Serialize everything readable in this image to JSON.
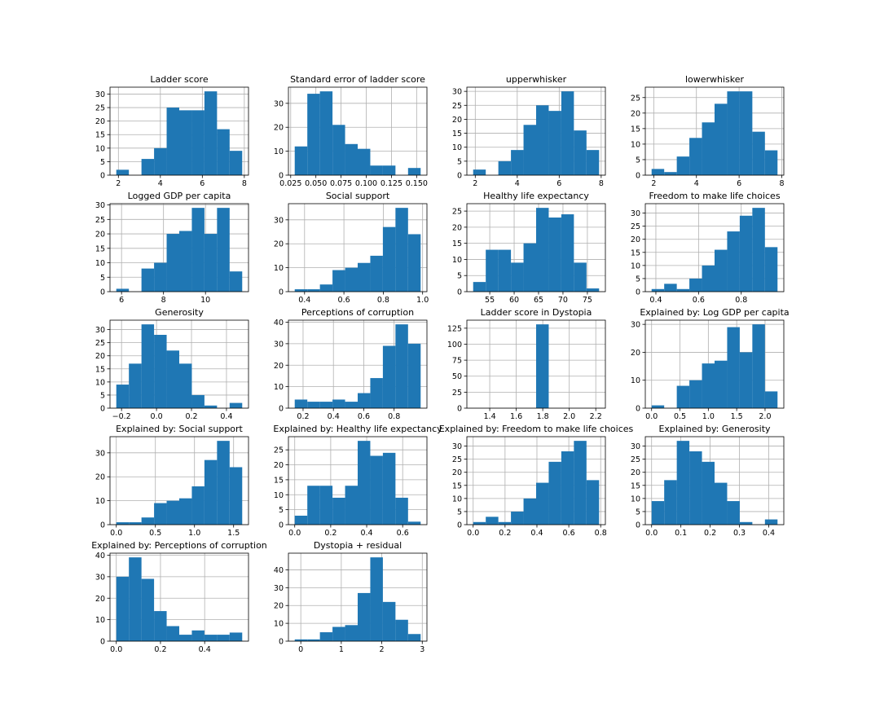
{
  "chart_data": [
    {
      "type": "histogram",
      "title": "Ladder score",
      "color": "#1f77b4",
      "grid": true,
      "bins": [
        1.9,
        2.5,
        3.1,
        3.7,
        4.3,
        4.9,
        5.5,
        6.1,
        6.7,
        7.3,
        7.9
      ],
      "values": [
        2,
        0,
        6,
        10,
        25,
        24,
        24,
        31,
        17,
        9
      ],
      "xlim": [
        1.6,
        8.2
      ],
      "xticks": [
        2,
        4,
        6,
        8
      ],
      "ylim": [
        0,
        32.55
      ],
      "yticks": [
        0,
        5,
        10,
        15,
        20,
        25,
        30
      ]
    },
    {
      "type": "histogram",
      "title": "Standard error of ladder score",
      "color": "#1f77b4",
      "grid": true,
      "bins": [
        0.029,
        0.0415,
        0.054,
        0.0665,
        0.079,
        0.0915,
        0.104,
        0.1165,
        0.129,
        0.1415,
        0.154
      ],
      "values": [
        12,
        34,
        35,
        21,
        13,
        11,
        4,
        4,
        0,
        3
      ],
      "xlim": [
        0.02275,
        0.16025
      ],
      "xticks": [
        0.025,
        {
          "value": 0.05,
          "label": "0.050"
        },
        0.075,
        {
          "value": 0.1,
          "label": "0.100"
        },
        0.125,
        {
          "value": 0.15,
          "label": "0.150"
        }
      ],
      "ylim": [
        0,
        36.75
      ],
      "yticks": [
        0,
        10,
        20,
        30
      ]
    },
    {
      "type": "histogram",
      "title": "upperwhisker",
      "color": "#1f77b4",
      "grid": true,
      "bins": [
        1.9,
        2.5,
        3.1,
        3.7,
        4.3,
        4.9,
        5.5,
        6.1,
        6.7,
        7.3,
        7.9
      ],
      "values": [
        2,
        0,
        5,
        9,
        18,
        25,
        23,
        30,
        16,
        9
      ],
      "xlim": [
        1.6,
        8.2
      ],
      "xticks": [
        2,
        4,
        6,
        8
      ],
      "ylim": [
        0,
        31.5
      ],
      "yticks": [
        0,
        5,
        10,
        15,
        20,
        25,
        30
      ]
    },
    {
      "type": "histogram",
      "title": "lowerwhisker",
      "color": "#1f77b4",
      "grid": true,
      "bins": [
        1.9,
        2.49,
        3.08,
        3.67,
        4.26,
        4.85,
        5.44,
        6.03,
        6.62,
        7.21,
        7.8
      ],
      "values": [
        2,
        1,
        6,
        12,
        17,
        23,
        27,
        27,
        14,
        8
      ],
      "xlim": [
        1.605,
        8.095
      ],
      "xticks": [
        2,
        4,
        6,
        8
      ],
      "ylim": [
        0,
        28.35
      ],
      "yticks": [
        0,
        5,
        10,
        15,
        20,
        25
      ]
    },
    {
      "type": "histogram",
      "title": "Logged GDP per capita",
      "color": "#1f77b4",
      "grid": true,
      "bins": [
        5.75,
        6.35,
        6.95,
        7.55,
        8.15,
        8.75,
        9.35,
        9.95,
        10.55,
        11.15,
        11.75
      ],
      "values": [
        1,
        0,
        8,
        10,
        20,
        21,
        29,
        20,
        29,
        7
      ],
      "xlim": [
        5.45,
        12.05
      ],
      "xticks": [
        6,
        8,
        10
      ],
      "ylim": [
        0,
        30.45
      ],
      "yticks": [
        0,
        5,
        10,
        15,
        20,
        25,
        30
      ]
    },
    {
      "type": "histogram",
      "title": "Social support",
      "color": "#1f77b4",
      "grid": true,
      "bins": [
        0.35,
        0.414,
        0.478,
        0.542,
        0.606,
        0.67,
        0.734,
        0.798,
        0.862,
        0.926,
        0.99
      ],
      "values": [
        1,
        1,
        3,
        9,
        10,
        12,
        15,
        27,
        35,
        24
      ],
      "xlim": [
        0.318,
        1.022
      ],
      "xticks": [
        0.4,
        0.6,
        0.8,
        {
          "value": 1,
          "label": "1.0"
        }
      ],
      "ylim": [
        0,
        36.75
      ],
      "yticks": [
        0,
        10,
        20,
        30
      ]
    },
    {
      "type": "histogram",
      "title": "Healthy life expectancy",
      "color": "#1f77b4",
      "grid": true,
      "bins": [
        51.6,
        54.18,
        56.76,
        59.34,
        61.92,
        64.5,
        67.08,
        69.66,
        72.24,
        74.82,
        77.4
      ],
      "values": [
        3,
        13,
        13,
        9,
        15,
        26,
        23,
        24,
        9,
        1
      ],
      "xlim": [
        50.31,
        78.69
      ],
      "xticks": [
        55,
        60,
        65,
        70,
        75
      ],
      "ylim": [
        0,
        27.3
      ],
      "yticks": [
        0,
        5,
        10,
        15,
        20,
        25
      ]
    },
    {
      "type": "histogram",
      "title": "Freedom to make life choices",
      "color": "#1f77b4",
      "grid": true,
      "bins": [
        0.38,
        0.439,
        0.498,
        0.557,
        0.616,
        0.675,
        0.734,
        0.793,
        0.852,
        0.911,
        0.97
      ],
      "values": [
        1,
        3,
        1,
        5,
        10,
        16,
        23,
        29,
        32,
        17
      ],
      "xlim": [
        0.3505,
        0.9995
      ],
      "xticks": [
        0.4,
        0.6,
        0.8
      ],
      "ylim": [
        0,
        33.6
      ],
      "yticks": [
        0,
        5,
        10,
        15,
        20,
        25,
        30
      ]
    },
    {
      "type": "histogram",
      "title": "Generosity",
      "color": "#1f77b4",
      "grid": true,
      "bins": [
        -0.23,
        -0.158,
        -0.086,
        -0.014,
        0.058,
        0.13,
        0.202,
        0.274,
        0.346,
        0.418,
        0.49
      ],
      "values": [
        9,
        17,
        32,
        28,
        22,
        17,
        5,
        1,
        0,
        2
      ],
      "xlim": [
        -0.266,
        0.526
      ],
      "xticks": [
        {
          "value": -0.2,
          "label": "−0.2"
        },
        {
          "value": 0,
          "label": "0.0"
        },
        0.2,
        0.4
      ],
      "ylim": [
        0,
        33.6
      ],
      "yticks": [
        0,
        5,
        10,
        15,
        20,
        25,
        30
      ]
    },
    {
      "type": "histogram",
      "title": "Perceptions of corruption",
      "color": "#1f77b4",
      "grid": true,
      "bins": [
        0.145,
        0.228,
        0.311,
        0.394,
        0.477,
        0.56,
        0.643,
        0.726,
        0.809,
        0.892,
        0.975
      ],
      "values": [
        4,
        3,
        3,
        4,
        3,
        7,
        14,
        29,
        39,
        30
      ],
      "xlim": [
        0.1035,
        1.0165
      ],
      "xticks": [
        0.2,
        0.4,
        0.6,
        0.8
      ],
      "ylim": [
        0,
        40.95
      ],
      "yticks": [
        0,
        10,
        20,
        30,
        40
      ]
    },
    {
      "type": "histogram",
      "title": "Ladder score in Dystopia",
      "color": "#1f77b4",
      "grid": true,
      "bins": [
        1.275,
        1.37,
        1.465,
        1.56,
        1.655,
        1.75,
        1.845,
        1.94,
        2.035,
        2.13,
        2.225
      ],
      "values": [
        0,
        0,
        0,
        0,
        0,
        131,
        0,
        0,
        0,
        0
      ],
      "xlim": [
        1.2275,
        2.2725
      ],
      "xticks": [
        1.4,
        1.6,
        1.8,
        {
          "value": 2,
          "label": "2.0"
        },
        2.2
      ],
      "ylim": [
        0,
        137.55
      ],
      "yticks": [
        0,
        25,
        50,
        75,
        100,
        125
      ]
    },
    {
      "type": "histogram",
      "title": "Explained by: Log GDP per capita",
      "color": "#1f77b4",
      "grid": true,
      "bins": [
        0,
        0.222,
        0.444,
        0.666,
        0.888,
        1.11,
        1.332,
        1.554,
        1.776,
        1.998,
        2.22
      ],
      "values": [
        1,
        0,
        8,
        10,
        16,
        17,
        29,
        20,
        30,
        6
      ],
      "xlim": [
        -0.111,
        2.331
      ],
      "xticks": [
        {
          "value": 0,
          "label": "0.0"
        },
        0.5,
        {
          "value": 1,
          "label": "1.0"
        },
        1.5,
        {
          "value": 2,
          "label": "2.0"
        }
      ],
      "ylim": [
        0,
        31.5
      ],
      "yticks": [
        0,
        10,
        20,
        30
      ]
    },
    {
      "type": "histogram",
      "title": "Explained by: Social support",
      "color": "#1f77b4",
      "grid": true,
      "bins": [
        0,
        0.161,
        0.322,
        0.483,
        0.644,
        0.805,
        0.966,
        1.127,
        1.288,
        1.449,
        1.61
      ],
      "values": [
        1,
        1,
        3,
        9,
        10,
        11,
        16,
        27,
        35,
        24
      ],
      "xlim": [
        -0.0805,
        1.6905
      ],
      "xticks": [
        {
          "value": 0,
          "label": "0.0"
        },
        0.5,
        {
          "value": 1,
          "label": "1.0"
        },
        1.5
      ],
      "ylim": [
        0,
        36.75
      ],
      "yticks": [
        0,
        10,
        20,
        30
      ]
    },
    {
      "type": "histogram",
      "title": "Explained by: Healthy life expectancy",
      "color": "#1f77b4",
      "grid": true,
      "bins": [
        0,
        0.07,
        0.14,
        0.21,
        0.28,
        0.35,
        0.42,
        0.49,
        0.56,
        0.63,
        0.7
      ],
      "values": [
        3,
        13,
        13,
        9,
        13,
        28,
        23,
        24,
        9,
        1
      ],
      "xlim": [
        -0.035,
        0.735
      ],
      "xticks": [
        {
          "value": 0,
          "label": "0.0"
        },
        0.2,
        0.4,
        0.6
      ],
      "ylim": [
        0,
        29.4
      ],
      "yticks": [
        0,
        5,
        10,
        15,
        20,
        25
      ]
    },
    {
      "type": "histogram",
      "title": "Explained by: Freedom to make life choices",
      "color": "#1f77b4",
      "grid": true,
      "bins": [
        0,
        0.079,
        0.158,
        0.237,
        0.316,
        0.395,
        0.474,
        0.553,
        0.632,
        0.711,
        0.79
      ],
      "values": [
        1,
        3,
        1,
        5,
        10,
        16,
        24,
        28,
        32,
        17
      ],
      "xlim": [
        -0.0395,
        0.8295
      ],
      "xticks": [
        {
          "value": 0,
          "label": "0.0"
        },
        0.2,
        0.4,
        0.6,
        0.8
      ],
      "ylim": [
        0,
        33.6
      ],
      "yticks": [
        0,
        5,
        10,
        15,
        20,
        25,
        30
      ]
    },
    {
      "type": "histogram",
      "title": "Explained by: Generosity",
      "color": "#1f77b4",
      "grid": true,
      "bins": [
        0,
        0.043,
        0.086,
        0.129,
        0.172,
        0.215,
        0.258,
        0.301,
        0.344,
        0.387,
        0.43
      ],
      "values": [
        9,
        17,
        32,
        28,
        24,
        16,
        9,
        1,
        0,
        2
      ],
      "xlim": [
        -0.0215,
        0.4515
      ],
      "xticks": [
        {
          "value": 0,
          "label": "0.0"
        },
        0.1,
        0.2,
        0.3,
        0.4
      ],
      "ylim": [
        0,
        33.6
      ],
      "yticks": [
        0,
        5,
        10,
        15,
        20,
        25,
        30
      ]
    },
    {
      "type": "histogram",
      "title": "Explained by: Perceptions of corruption",
      "color": "#1f77b4",
      "grid": true,
      "bins": [
        0,
        0.057,
        0.114,
        0.171,
        0.228,
        0.285,
        0.342,
        0.399,
        0.456,
        0.513,
        0.57
      ],
      "values": [
        30,
        39,
        29,
        14,
        7,
        3,
        5,
        3,
        3,
        4
      ],
      "xlim": [
        -0.0285,
        0.5985
      ],
      "xticks": [
        {
          "value": 0,
          "label": "0.0"
        },
        0.2,
        0.4
      ],
      "ylim": [
        0,
        40.95
      ],
      "yticks": [
        0,
        10,
        20,
        30,
        40
      ]
    },
    {
      "type": "histogram",
      "title": "Dystopia + residual",
      "color": "#1f77b4",
      "grid": true,
      "bins": [
        -0.15,
        0.161,
        0.472,
        0.783,
        1.094,
        1.405,
        1.716,
        2.027,
        2.338,
        2.649,
        2.96
      ],
      "values": [
        1,
        1,
        5,
        8,
        9,
        27,
        47,
        22,
        12,
        4
      ],
      "xlim": [
        -0.3055,
        3.1155
      ],
      "xticks": [
        0,
        1,
        2,
        3
      ],
      "ylim": [
        0,
        49.35
      ],
      "yticks": [
        0,
        10,
        20,
        30,
        40
      ]
    }
  ]
}
